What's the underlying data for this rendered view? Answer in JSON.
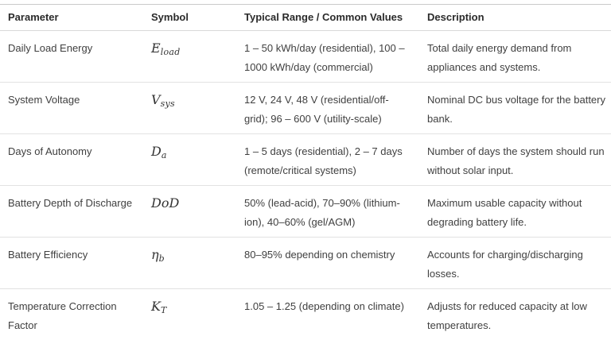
{
  "table": {
    "columns": [
      {
        "label": "Parameter"
      },
      {
        "label": "Symbol"
      },
      {
        "label": "Typical Range / Common Values"
      },
      {
        "label": "Description"
      }
    ],
    "rows": [
      {
        "parameter_lines": [
          "Daily Load Energy"
        ],
        "symbol": {
          "base": "E",
          "sub": "load"
        },
        "range_lines": [
          "1 – 50 kWh/day (residential), 100 –",
          "1000 kWh/day (commercial)"
        ],
        "description_lines": [
          "Total daily energy demand from",
          "appliances and systems."
        ]
      },
      {
        "parameter_lines": [
          "System Voltage"
        ],
        "symbol": {
          "base": "V",
          "sub": "sys"
        },
        "range_lines": [
          "12 V, 24 V, 48 V (residential/off-",
          "grid); 96 – 600 V (utility-scale)"
        ],
        "description_lines": [
          "Nominal DC bus voltage for the battery",
          "bank."
        ]
      },
      {
        "parameter_lines": [
          "Days of Autonomy"
        ],
        "symbol": {
          "base": "D",
          "sub": "a"
        },
        "range_lines": [
          "1 – 5 days (residential), 2 – 7 days",
          "(remote/critical systems)"
        ],
        "description_lines": [
          "Number of days the system should run",
          "without solar input."
        ]
      },
      {
        "parameter_lines": [
          "Battery Depth of Discharge"
        ],
        "symbol": {
          "base": "DoD",
          "sub": ""
        },
        "range_lines": [
          "50% (lead-acid), 70–90% (lithium-",
          "ion), 40–60% (gel/AGM)"
        ],
        "description_lines": [
          "Maximum usable capacity without",
          "degrading battery life."
        ]
      },
      {
        "parameter_lines": [
          "Battery Efficiency"
        ],
        "symbol": {
          "base": "η",
          "sub": "b"
        },
        "range_lines": [
          "80–95% depending on chemistry"
        ],
        "description_lines": [
          "Accounts for charging/discharging",
          "losses."
        ]
      },
      {
        "parameter_lines": [
          "Temperature Correction",
          "Factor"
        ],
        "symbol": {
          "base": "K",
          "sub": "T"
        },
        "range_lines": [
          "1.05 – 1.25 (depending on climate)"
        ],
        "description_lines": [
          "Adjusts for reduced capacity at low",
          "temperatures."
        ]
      }
    ],
    "colors": {
      "text": "#404040",
      "header_text": "#2b2b2b",
      "divider": "#e2e2e2",
      "top_border": "#c9c9c9"
    }
  }
}
